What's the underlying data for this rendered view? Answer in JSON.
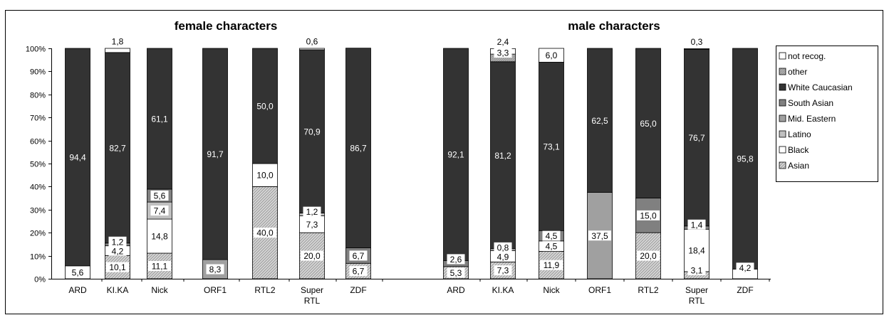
{
  "chart_data": {
    "type": "bar",
    "stacked": true,
    "ylim": [
      0,
      100
    ],
    "y_ticks": [
      "0%",
      "10%",
      "20%",
      "30%",
      "40%",
      "50%",
      "60%",
      "70%",
      "80%",
      "90%",
      "100%"
    ],
    "grid": false,
    "legend_position": "right",
    "series": [
      {
        "name": "Asian",
        "color": "#c8c8c8",
        "pattern": "hatch"
      },
      {
        "name": "Black",
        "color": "#ffffff"
      },
      {
        "name": "Latino",
        "color": "#c0c0c0"
      },
      {
        "name": "Mid. Eastern",
        "color": "#a0a0a0"
      },
      {
        "name": "South Asian",
        "color": "#808080"
      },
      {
        "name": "White Caucasian",
        "color": "#333333"
      },
      {
        "name": "other",
        "color": "#c0c0c0",
        "pattern": "hatch"
      },
      {
        "name": "not recog.",
        "color": "#ffffff"
      }
    ],
    "legend_order": [
      "not recog.",
      "other",
      "White Caucasian",
      "South Asian",
      "Mid. Eastern",
      "Latino",
      "Black",
      "Asian"
    ],
    "panels": [
      {
        "title": "female characters",
        "categories": [
          "ARD",
          "KI.KA",
          "Nick",
          "ORF1",
          "RTL2",
          "Super RTL",
          "ZDF"
        ],
        "category_labels": [
          [
            "ARD"
          ],
          [
            "KI.KA"
          ],
          [
            "Nick"
          ],
          [
            "ORF1"
          ],
          [
            "RTL2"
          ],
          [
            "Super",
            "RTL"
          ],
          [
            "ZDF"
          ]
        ],
        "values": {
          "Asian": [
            0,
            10.1,
            11.1,
            0,
            40.0,
            20.0,
            6.7
          ],
          "Black": [
            5.6,
            4.2,
            14.8,
            0,
            10.0,
            7.3,
            0
          ],
          "Latino": [
            0,
            0,
            7.4,
            0,
            0,
            1.2,
            0
          ],
          "Mid. Eastern": [
            0,
            0,
            0,
            8.3,
            0,
            0,
            0
          ],
          "South Asian": [
            0,
            1.2,
            5.6,
            0,
            0,
            0,
            6.7
          ],
          "White Caucasian": [
            94.4,
            82.7,
            61.1,
            91.7,
            50.0,
            70.9,
            86.7
          ],
          "other": [
            0,
            0,
            0,
            0,
            0,
            0,
            0
          ],
          "not recog.": [
            0,
            1.8,
            0,
            0,
            0,
            0.6,
            0
          ]
        },
        "labels": {
          "Asian": [
            "",
            "10,1",
            "11,1",
            "",
            "40,0",
            "20,0",
            "6,7"
          ],
          "Black": [
            "5,6",
            "4,2",
            "14,8",
            "",
            "10,0",
            "7,3",
            ""
          ],
          "Latino": [
            "",
            "",
            "7,4",
            "",
            "",
            "1,2",
            ""
          ],
          "Mid. Eastern": [
            "",
            "",
            "",
            "8,3",
            "",
            "",
            ""
          ],
          "South Asian": [
            "",
            "1,2",
            "5,6",
            "",
            "",
            "",
            "6,7"
          ],
          "White Caucasian": [
            "94,4",
            "82,7",
            "61,1",
            "91,7",
            "50,0",
            "70,9",
            "86,7"
          ],
          "other": [
            "",
            "",
            "",
            "",
            "",
            "",
            ""
          ],
          "not recog.": [
            "",
            "1,8",
            "",
            "",
            "",
            "0,6",
            ""
          ]
        }
      },
      {
        "title": "male characters",
        "categories": [
          "ARD",
          "KI.KA",
          "Nick",
          "ORF1",
          "RTL2",
          "Super RTL",
          "ZDF"
        ],
        "category_labels": [
          [
            "ARD"
          ],
          [
            "KI.KA"
          ],
          [
            "Nick"
          ],
          [
            "ORF1"
          ],
          [
            "RTL2"
          ],
          [
            "Super",
            "RTL"
          ],
          [
            "ZDF"
          ]
        ],
        "values": {
          "Asian": [
            5.3,
            7.3,
            11.9,
            0,
            20.0,
            3.1,
            0
          ],
          "Black": [
            0,
            4.9,
            4.5,
            0,
            0,
            18.4,
            4.2
          ],
          "Latino": [
            0,
            0.8,
            0,
            0,
            0,
            0,
            0
          ],
          "Mid. Eastern": [
            0,
            0,
            0,
            37.5,
            0,
            0,
            0
          ],
          "South Asian": [
            2.6,
            0,
            4.5,
            0,
            15.0,
            1.4,
            0
          ],
          "White Caucasian": [
            92.1,
            81.2,
            73.1,
            62.5,
            65.0,
            76.7,
            95.8
          ],
          "other": [
            0,
            3.3,
            0,
            0,
            0,
            0,
            0
          ],
          "not recog.": [
            0,
            2.4,
            6.0,
            0,
            0,
            0.3,
            0
          ]
        },
        "labels": {
          "Asian": [
            "5,3",
            "7,3",
            "11,9",
            "",
            "20,0",
            "3,1",
            ""
          ],
          "Black": [
            "",
            "4,9",
            "4,5",
            "",
            "",
            "18,4",
            "4,2"
          ],
          "Latino": [
            "",
            "0,8",
            "",
            "",
            "",
            "",
            ""
          ],
          "Mid. Eastern": [
            "",
            "",
            "",
            "37,5",
            "",
            "",
            ""
          ],
          "South Asian": [
            "2,6",
            "",
            "4,5",
            "",
            "15,0",
            "1,4",
            ""
          ],
          "White Caucasian": [
            "92,1",
            "81,2",
            "73,1",
            "62,5",
            "65,0",
            "76,7",
            "95,8"
          ],
          "other": [
            "",
            "3,3",
            "",
            "",
            "",
            "",
            ""
          ],
          "not recog.": [
            "",
            "2,4",
            "6,0",
            "",
            "",
            "0,3",
            ""
          ]
        }
      }
    ]
  }
}
